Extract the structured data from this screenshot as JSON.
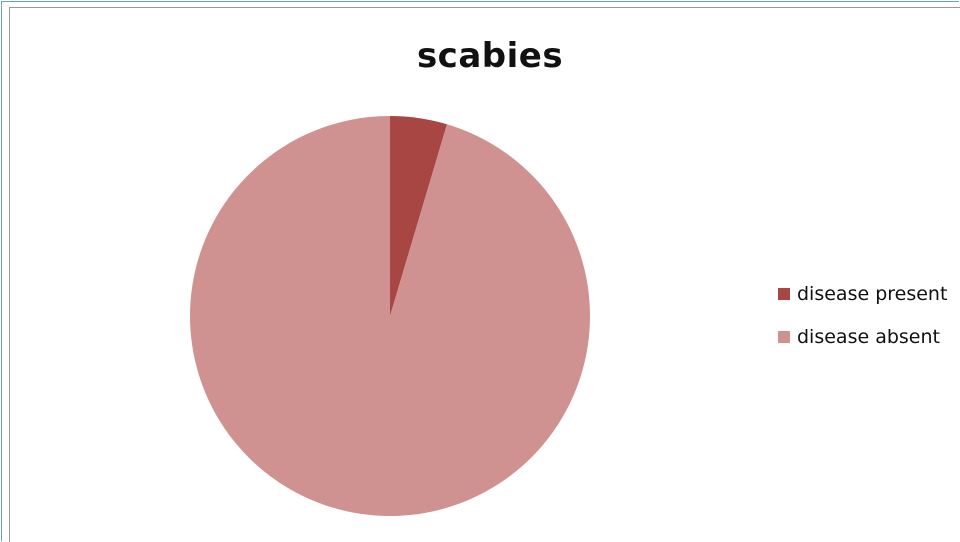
{
  "chart_data": {
    "type": "pie",
    "title": "scabies",
    "labels": [
      "disease present",
      "disease absent"
    ],
    "values": [
      4.6,
      95.4
    ],
    "colors": [
      "#a84644",
      "#d09191"
    ],
    "legend_position": "right"
  }
}
